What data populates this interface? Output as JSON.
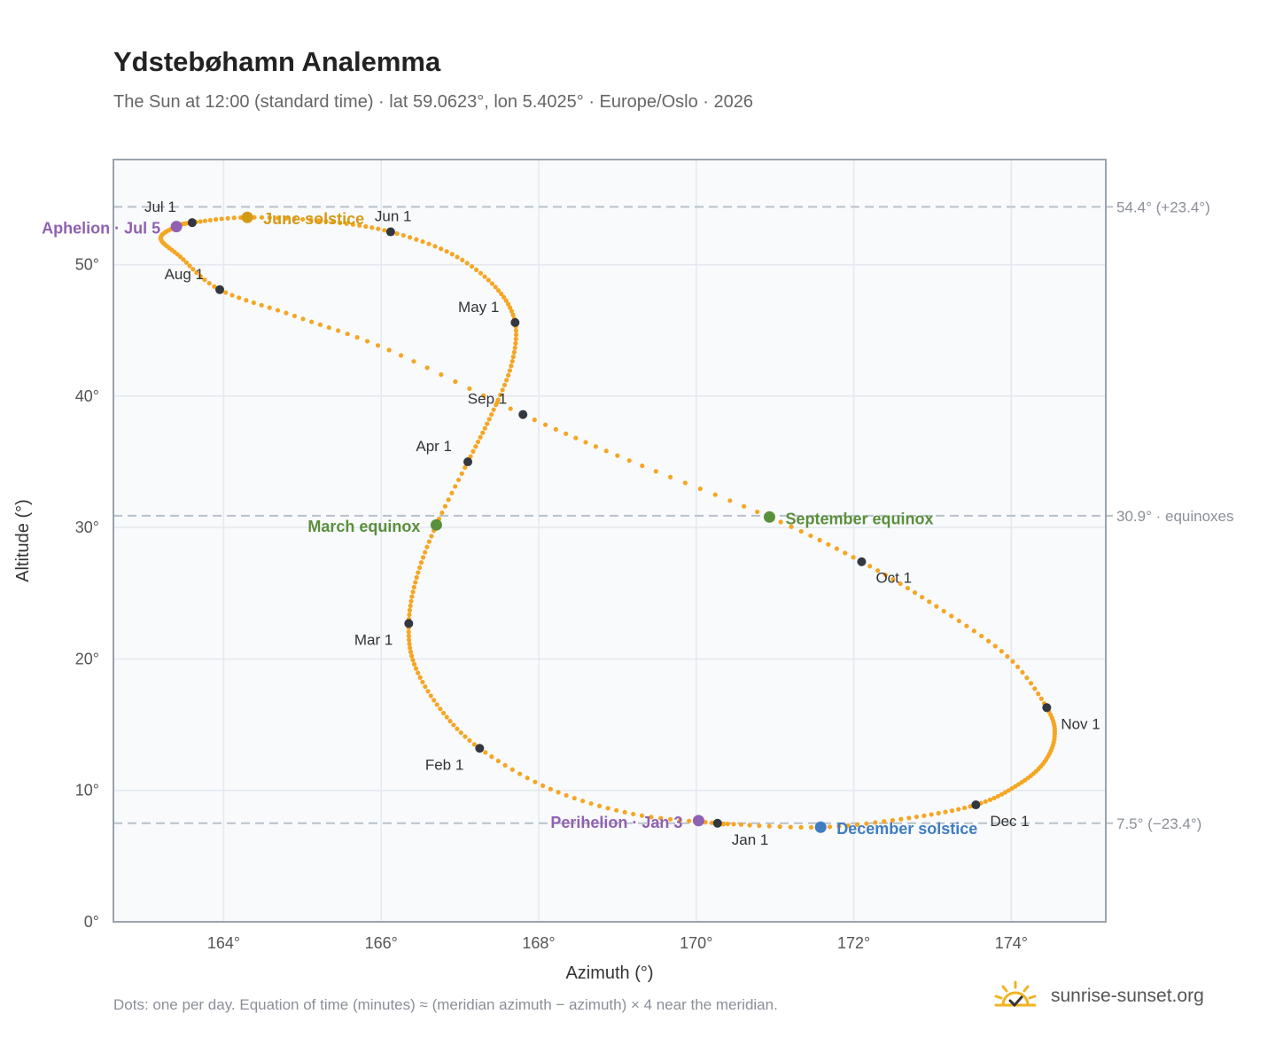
{
  "header": {
    "title": "Ydstebøhamn Analemma",
    "subtitle": "The Sun at 12:00 (standard time) · lat 59.0623°, lon 5.4025° · Europe/Oslo · 2026"
  },
  "footer": {
    "note": "Dots: one per day. Equation of time (minutes) ≈ (meridian azimuth − azimuth) × 4 near the meridian.",
    "brand": "sunrise-sunset.org",
    "brand_icon": "sun-logo-icon"
  },
  "colors": {
    "path": "#f5a623",
    "month_dot": "#333840",
    "aphelion": "#9061b0",
    "june_solstice": "#d49a17",
    "equinox": "#5a8f3c",
    "december_solstice": "#3f7cc2",
    "grid": "#e4e9ef",
    "ref_line": "#b9c1ca",
    "plot_bg": "#f8fafc",
    "frame": "#9aa3ae"
  },
  "chart_data": {
    "type": "scatter",
    "xlabel": "Azimuth (°)",
    "ylabel": "Altitude (°)",
    "xlim": [
      162.6,
      175.2
    ],
    "ylim": [
      0,
      58
    ],
    "xticks": [
      {
        "value": 164,
        "label": "164°"
      },
      {
        "value": 166,
        "label": "166°"
      },
      {
        "value": 168,
        "label": "168°"
      },
      {
        "value": 170,
        "label": "170°"
      },
      {
        "value": 172,
        "label": "172°"
      },
      {
        "value": 174,
        "label": "174°"
      }
    ],
    "yticks": [
      {
        "value": 0,
        "label": "0°"
      },
      {
        "value": 10,
        "label": "10°"
      },
      {
        "value": 20,
        "label": "20°"
      },
      {
        "value": 30,
        "label": "30°"
      },
      {
        "value": 40,
        "label": "40°"
      },
      {
        "value": 50,
        "label": "50°"
      }
    ],
    "grid": true,
    "reference_lines": [
      {
        "altitude": 54.4,
        "label": "54.4° (+23.4°)"
      },
      {
        "altitude": 30.9,
        "label": "30.9° · equinoxes"
      },
      {
        "altitude": 7.5,
        "label": "7.5° (−23.4°)"
      }
    ],
    "path_keypoints": [
      {
        "date": "Jan 1",
        "az": 170.27,
        "alt": 7.5
      },
      {
        "date": "Jan 10",
        "az": 169.2,
        "alt": 8.2
      },
      {
        "date": "Jan 20",
        "az": 168.15,
        "alt": 10.1
      },
      {
        "date": "Feb 1",
        "az": 167.25,
        "alt": 13.2
      },
      {
        "date": "Feb 10",
        "az": 166.75,
        "alt": 16.2
      },
      {
        "date": "Feb 20",
        "az": 166.42,
        "alt": 19.6
      },
      {
        "date": "Mar 1",
        "az": 166.35,
        "alt": 22.7
      },
      {
        "date": "Mar 10",
        "az": 166.45,
        "alt": 26.2
      },
      {
        "date": "Mar 20",
        "az": 166.7,
        "alt": 30.2
      },
      {
        "date": "Apr 1",
        "az": 167.1,
        "alt": 35.0
      },
      {
        "date": "Apr 10",
        "az": 167.4,
        "alt": 38.6
      },
      {
        "date": "Apr 20",
        "az": 167.65,
        "alt": 42.3
      },
      {
        "date": "May 1",
        "az": 167.7,
        "alt": 45.6
      },
      {
        "date": "May 10",
        "az": 167.45,
        "alt": 48.3
      },
      {
        "date": "May 20",
        "az": 166.9,
        "alt": 50.8
      },
      {
        "date": "Jun 1",
        "az": 166.12,
        "alt": 52.5
      },
      {
        "date": "Jun 10",
        "az": 165.3,
        "alt": 53.3
      },
      {
        "date": "Jun 21",
        "az": 164.3,
        "alt": 53.6
      },
      {
        "date": "Jul 1",
        "az": 163.6,
        "alt": 53.2
      },
      {
        "date": "Jul 5",
        "az": 163.4,
        "alt": 52.9
      },
      {
        "date": "Jul 12",
        "az": 163.2,
        "alt": 52.0
      },
      {
        "date": "Jul 20",
        "az": 163.45,
        "alt": 50.6
      },
      {
        "date": "Aug 1",
        "az": 163.95,
        "alt": 48.1
      },
      {
        "date": "Aug 10",
        "az": 164.9,
        "alt": 46.1
      },
      {
        "date": "Aug 20",
        "az": 166.1,
        "alt": 43.5
      },
      {
        "date": "Sep 1",
        "az": 167.8,
        "alt": 38.6
      },
      {
        "date": "Sep 10",
        "az": 169.15,
        "alt": 35.1
      },
      {
        "date": "Sep 22",
        "az": 170.93,
        "alt": 30.8
      },
      {
        "date": "Oct 1",
        "az": 172.1,
        "alt": 27.4
      },
      {
        "date": "Oct 10",
        "az": 173.05,
        "alt": 24.0
      },
      {
        "date": "Oct 20",
        "az": 173.95,
        "alt": 20.2
      },
      {
        "date": "Nov 1",
        "az": 174.45,
        "alt": 16.3
      },
      {
        "date": "Nov 8",
        "az": 174.55,
        "alt": 14.1
      },
      {
        "date": "Nov 15",
        "az": 174.4,
        "alt": 12.0
      },
      {
        "date": "Nov 22",
        "az": 174.05,
        "alt": 10.3
      },
      {
        "date": "Dec 1",
        "az": 173.55,
        "alt": 8.9
      },
      {
        "date": "Dec 10",
        "az": 172.7,
        "alt": 7.9
      },
      {
        "date": "Dec 21",
        "az": 171.58,
        "alt": 7.2
      },
      {
        "date": "Dec 31",
        "az": 170.4,
        "alt": 7.45
      }
    ],
    "month_points": [
      {
        "label": "Jan 1",
        "az": 170.27,
        "alt": 7.5
      },
      {
        "label": "Feb 1",
        "az": 167.25,
        "alt": 13.2
      },
      {
        "label": "Mar 1",
        "az": 166.35,
        "alt": 22.7
      },
      {
        "label": "Apr 1",
        "az": 167.1,
        "alt": 35.0
      },
      {
        "label": "May 1",
        "az": 167.7,
        "alt": 45.6
      },
      {
        "label": "Jun 1",
        "az": 166.12,
        "alt": 52.5
      },
      {
        "label": "Jul 1",
        "az": 163.6,
        "alt": 53.2
      },
      {
        "label": "Aug 1",
        "az": 163.95,
        "alt": 48.1
      },
      {
        "label": "Sep 1",
        "az": 167.8,
        "alt": 38.6
      },
      {
        "label": "Oct 1",
        "az": 172.1,
        "alt": 27.4
      },
      {
        "label": "Nov 1",
        "az": 174.45,
        "alt": 16.3
      },
      {
        "label": "Dec 1",
        "az": 173.55,
        "alt": 8.9
      }
    ],
    "events": [
      {
        "label": "June solstice",
        "az": 164.3,
        "alt": 53.6,
        "color_key": "june_solstice"
      },
      {
        "label": "Aphelion · Jul 5",
        "az": 163.4,
        "alt": 52.9,
        "color_key": "aphelion"
      },
      {
        "label": "March equinox",
        "az": 166.7,
        "alt": 30.2,
        "color_key": "equinox"
      },
      {
        "label": "September equinox",
        "az": 170.93,
        "alt": 30.8,
        "color_key": "equinox"
      },
      {
        "label": "Perihelion · Jan 3",
        "az": 170.03,
        "alt": 7.7,
        "color_key": "aphelion"
      },
      {
        "label": "December solstice",
        "az": 171.58,
        "alt": 7.2,
        "color_key": "december_solstice"
      }
    ]
  }
}
